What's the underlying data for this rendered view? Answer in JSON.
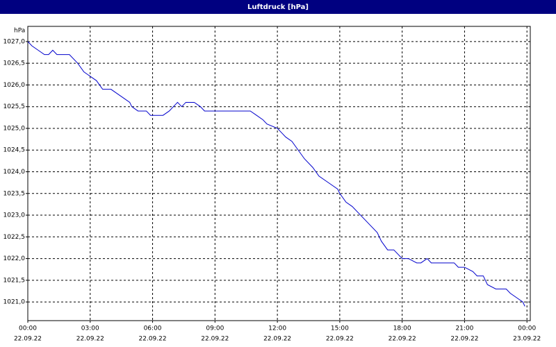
{
  "chart_data": {
    "type": "line",
    "title": "Luftdruck [hPa]",
    "y_unit": "hPa",
    "x": [
      0,
      0.2,
      0.5,
      0.8,
      1.0,
      1.2,
      1.4,
      2.0,
      2.4,
      2.7,
      3.0,
      3.3,
      3.6,
      4.0,
      4.3,
      4.6,
      4.9,
      5.0,
      5.3,
      5.7,
      5.9,
      6.0,
      6.5,
      6.8,
      7.0,
      7.2,
      7.4,
      7.6,
      8.0,
      8.3,
      8.5,
      9.0,
      10.0,
      10.7,
      11.0,
      11.3,
      11.5,
      12.0,
      12.2,
      12.4,
      12.7,
      13.0,
      13.3,
      13.7,
      14.0,
      14.3,
      14.6,
      14.9,
      15.0,
      15.3,
      15.6,
      16.0,
      16.4,
      16.8,
      17.0,
      17.3,
      17.6,
      18.0,
      18.3,
      18.7,
      18.9,
      19.2,
      19.4,
      20.0,
      20.5,
      20.7,
      21.0,
      21.4,
      21.6,
      21.9,
      22.1,
      22.5,
      23.0,
      23.2,
      23.5,
      23.8,
      23.9
    ],
    "series": [
      {
        "name": "Luftdruck",
        "color": "#0000cc",
        "values": [
          1027.0,
          1026.9,
          1026.8,
          1026.7,
          1026.7,
          1026.8,
          1026.7,
          1026.7,
          1026.5,
          1026.3,
          1026.2,
          1026.1,
          1025.9,
          1025.9,
          1025.8,
          1025.7,
          1025.6,
          1025.5,
          1025.4,
          1025.4,
          1025.3,
          1025.3,
          1025.3,
          1025.4,
          1025.5,
          1025.6,
          1025.5,
          1025.6,
          1025.6,
          1025.5,
          1025.4,
          1025.4,
          1025.4,
          1025.4,
          1025.3,
          1025.2,
          1025.1,
          1025.0,
          1024.9,
          1024.8,
          1024.7,
          1024.5,
          1024.3,
          1024.1,
          1023.9,
          1023.8,
          1023.7,
          1023.6,
          1023.5,
          1023.3,
          1023.2,
          1023.0,
          1022.8,
          1022.6,
          1022.4,
          1022.2,
          1022.2,
          1022.0,
          1022.0,
          1021.9,
          1021.9,
          1022.0,
          1021.9,
          1021.9,
          1021.9,
          1021.8,
          1021.8,
          1021.7,
          1021.6,
          1021.6,
          1021.4,
          1021.3,
          1021.3,
          1021.2,
          1021.1,
          1021.0,
          1020.9
        ]
      }
    ],
    "xlim": [
      0,
      24.16
    ],
    "ylim": [
      1020.57,
      1027.35
    ],
    "xticks": [
      {
        "value": 0,
        "label": [
          "00:00",
          "22.09.22"
        ]
      },
      {
        "value": 3,
        "label": [
          "03:00",
          "22.09.22"
        ]
      },
      {
        "value": 6,
        "label": [
          "06:00",
          "22.09.22"
        ]
      },
      {
        "value": 9,
        "label": [
          "09:00",
          "22.09.22"
        ]
      },
      {
        "value": 12,
        "label": [
          "12:00",
          "22.09.22"
        ]
      },
      {
        "value": 15,
        "label": [
          "15:00",
          "22.09.22"
        ]
      },
      {
        "value": 18,
        "label": [
          "18:00",
          "22.09.22"
        ]
      },
      {
        "value": 21,
        "label": [
          "21:00",
          "22.09.22"
        ]
      },
      {
        "value": 24,
        "label": [
          "00:00",
          "23.09.22"
        ]
      }
    ],
    "yticks": [
      {
        "value": 1021.0,
        "label": "1021,0"
      },
      {
        "value": 1021.5,
        "label": "1021,5"
      },
      {
        "value": 1022.0,
        "label": "1022,0"
      },
      {
        "value": 1022.5,
        "label": "1022,5"
      },
      {
        "value": 1023.0,
        "label": "1023,0"
      },
      {
        "value": 1023.5,
        "label": "1023,5"
      },
      {
        "value": 1024.0,
        "label": "1024,0"
      },
      {
        "value": 1024.5,
        "label": "1024,5"
      },
      {
        "value": 1025.0,
        "label": "1025,0"
      },
      {
        "value": 1025.5,
        "label": "1025,5"
      },
      {
        "value": 1026.0,
        "label": "1026,0"
      },
      {
        "value": 1026.5,
        "label": "1026,5"
      },
      {
        "value": 1027.0,
        "label": "1027,0"
      }
    ],
    "grid": true
  }
}
